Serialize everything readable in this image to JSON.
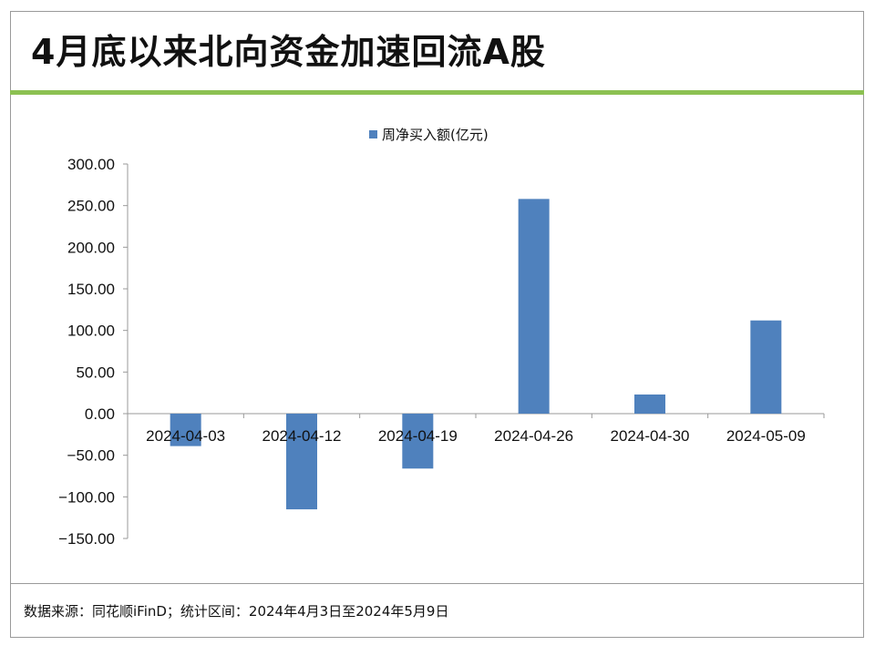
{
  "title": "4月底以来北向资金加速回流A股",
  "source": "数据来源：同花顺iFinD；统计区间：2024年4月3日至2024年5月9日",
  "colors": {
    "bar": "#4f81bd",
    "accent_line": "#8cc152",
    "axis": "#9a9a9a"
  },
  "chart_data": {
    "type": "bar",
    "title": "",
    "categories": [
      "2024-04-03",
      "2024-04-12",
      "2024-04-19",
      "2024-04-26",
      "2024-04-30",
      "2024-05-09"
    ],
    "series": [
      {
        "name": "周净买入额(亿元)",
        "values": [
          -39,
          -115,
          -66,
          258,
          23,
          112
        ]
      }
    ],
    "ylim": [
      -150,
      300
    ],
    "yticks": [
      "300.00",
      "250.00",
      "200.00",
      "150.00",
      "100.00",
      "50.00",
      "0.00",
      "−50.00",
      "−100.00",
      "−150.00"
    ],
    "ytick_values": [
      300,
      250,
      200,
      150,
      100,
      50,
      0,
      -50,
      -100,
      -150
    ],
    "legend": "top-center",
    "grid": false
  }
}
